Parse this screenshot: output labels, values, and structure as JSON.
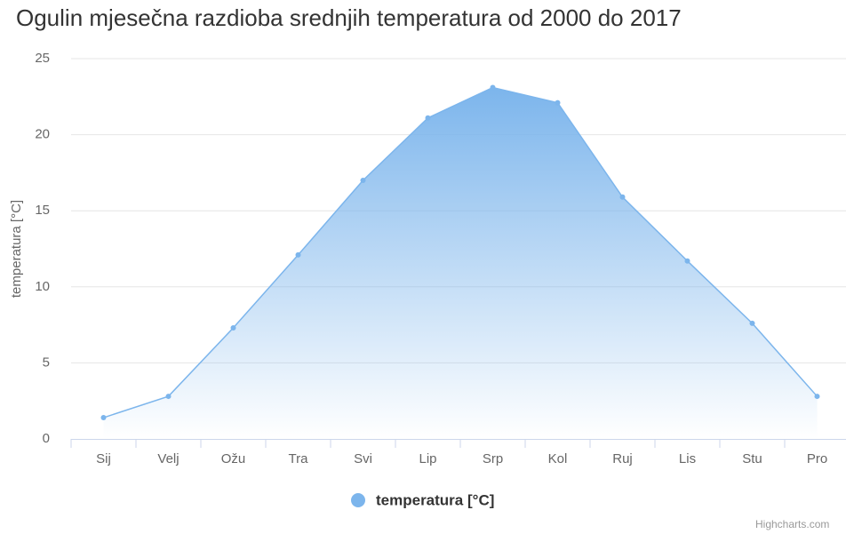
{
  "chart_data": {
    "type": "area",
    "title": "Ogulin mjesečna razdioba srednjih temperatura od 2000 do 2017",
    "y_axis_label": "temperatura [°C]",
    "categories": [
      "Sij",
      "Velj",
      "Ožu",
      "Tra",
      "Svi",
      "Lip",
      "Srp",
      "Kol",
      "Ruj",
      "Lis",
      "Stu",
      "Pro"
    ],
    "series": [
      {
        "name": "temperatura [°C]",
        "color": "#7cb5ec",
        "values": [
          1.4,
          2.8,
          7.3,
          12.1,
          17.0,
          21.1,
          23.1,
          22.1,
          15.9,
          11.7,
          7.6,
          2.8
        ]
      }
    ],
    "ylim": [
      0,
      25
    ],
    "yticks": [
      0,
      5,
      10,
      15,
      20,
      25
    ],
    "grid": true,
    "legend": "bottom",
    "credits": "Highcharts.com"
  }
}
